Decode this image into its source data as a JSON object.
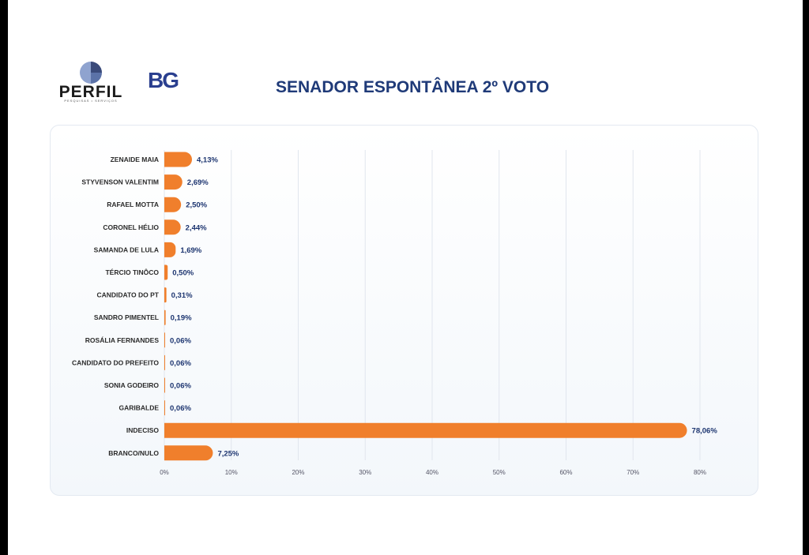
{
  "header": {
    "logo_perfil": "PERFIL",
    "logo_perfil_tag": "PESQUISAS • SERVIÇOS",
    "logo_bg": "BG",
    "title": "SENADOR ESPONTÂNEA 2º VOTO"
  },
  "colors": {
    "bar": "#f07f2c",
    "grid": "#e1e6ee",
    "title": "#1f3a78"
  },
  "chart_data": {
    "type": "bar",
    "orientation": "horizontal",
    "title": "SENADOR ESPONTÂNEA 2º VOTO",
    "categories": [
      "ZENAIDE MAIA",
      "STYVENSON VALENTIM",
      "RAFAEL MOTTA",
      "CORONEL HÉLIO",
      "SAMANDA DE LULA",
      "TÉRCIO TINÔCO",
      "CANDIDATO DO PT",
      "SANDRO PIMENTEL",
      "ROSÁLIA FERNANDES",
      "CANDIDATO DO PREFEITO",
      "SONIA GODEIRO",
      "GARIBALDE",
      "INDECISO",
      "BRANCO/NULO"
    ],
    "values": [
      4.13,
      2.69,
      2.5,
      2.44,
      1.69,
      0.5,
      0.31,
      0.19,
      0.06,
      0.06,
      0.06,
      0.06,
      78.06,
      7.25
    ],
    "value_labels": [
      "4,13%",
      "2,69%",
      "2,50%",
      "2,44%",
      "1,69%",
      "0,50%",
      "0,31%",
      "0,19%",
      "0,06%",
      "0,06%",
      "0,06%",
      "0,06%",
      "78,06%",
      "7,25%"
    ],
    "xlim": [
      0,
      80
    ],
    "xticks": [
      0,
      10,
      20,
      30,
      40,
      50,
      60,
      70,
      80
    ],
    "xtick_labels": [
      "0%",
      "10%",
      "20%",
      "30%",
      "40%",
      "50%",
      "60%",
      "70%",
      "80%"
    ],
    "grid": true,
    "xlabel": "",
    "ylabel": ""
  }
}
